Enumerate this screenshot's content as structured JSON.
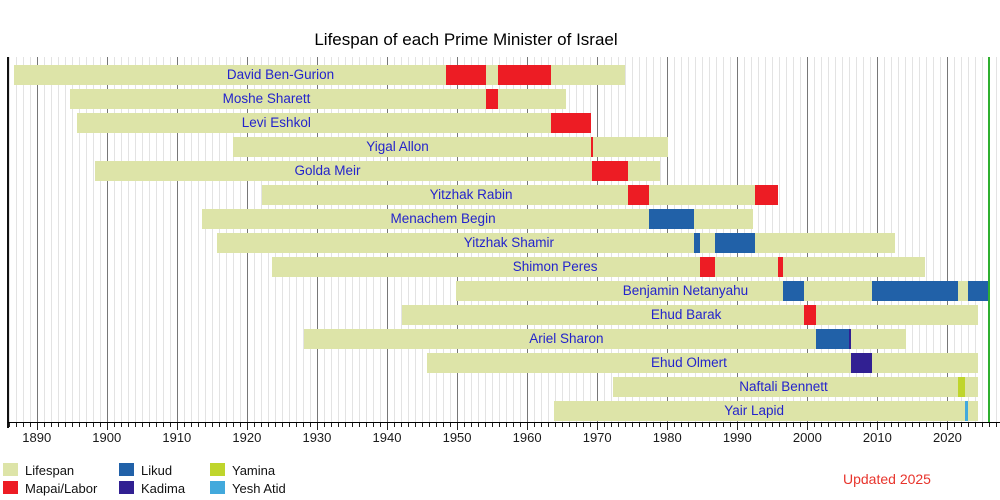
{
  "title": "Lifespan of each Prime Minister of Israel",
  "updated_note": "Updated 2025",
  "colors": {
    "lifespan": "#dde4a8",
    "mapai_labor": "#ed1c24",
    "likud": "#2161a8",
    "kadima": "#312092",
    "yamina": "#bfd52c",
    "yesh_atid": "#42a9dc",
    "label_text": "#2424cc",
    "now_line": "#2faf2f",
    "grid_minor": "#e3e3e3",
    "grid_major": "#777777",
    "axis": "#000000",
    "updated_note_color": "#e8342c"
  },
  "legend": {
    "items": [
      {
        "label": "Lifespan",
        "color_key": "lifespan"
      },
      {
        "label": "Mapai/Labor",
        "color_key": "mapai_labor"
      },
      {
        "label": "Likud",
        "color_key": "likud"
      },
      {
        "label": "Kadima",
        "color_key": "kadima"
      },
      {
        "label": "Yamina",
        "color_key": "yamina"
      },
      {
        "label": "Yesh Atid",
        "color_key": "yesh_atid"
      }
    ]
  },
  "chart_data": {
    "type": "timeline",
    "title": "Lifespan of each Prime Minister of Israel",
    "x_axis": {
      "min_year": 1885.9,
      "max_year": 2027.5,
      "minor_tick_step": 1,
      "major_tick_step": 10,
      "tick_label_years": [
        1890,
        1900,
        1910,
        1920,
        1930,
        1940,
        1950,
        1960,
        1970,
        1980,
        1990,
        2000,
        2010,
        2020
      ]
    },
    "now_marker_year": 2025.9,
    "living_bar_end_year": 2024.4,
    "rows": [
      {
        "name": "David Ben-Gurion",
        "birth": 1886.8,
        "death": 1973.95,
        "label_year": 1924.8,
        "terms": [
          {
            "party": "mapai_labor",
            "start": 1948.37,
            "end": 1954.07
          },
          {
            "party": "mapai_labor",
            "start": 1955.84,
            "end": 1963.48
          }
        ]
      },
      {
        "name": "Moshe Sharett",
        "birth": 1894.8,
        "death": 1965.55,
        "label_year": 1922.8,
        "terms": [
          {
            "party": "mapai_labor",
            "start": 1954.07,
            "end": 1955.84
          }
        ]
      },
      {
        "name": "Levi Eshkol",
        "birth": 1895.8,
        "death": 1969.15,
        "label_year": 1924.2,
        "terms": [
          {
            "party": "mapai_labor",
            "start": 1963.48,
            "end": 1969.15
          }
        ]
      },
      {
        "name": "Yigal Allon",
        "birth": 1918.0,
        "death": 1980.15,
        "label_year": 1941.5,
        "terms": [
          {
            "party": "mapai_labor",
            "start": 1969.15,
            "end": 1969.45
          }
        ]
      },
      {
        "name": "Golda Meir",
        "birth": 1898.3,
        "death": 1978.9,
        "label_year": 1931.5,
        "terms": [
          {
            "party": "mapai_labor",
            "start": 1969.21,
            "end": 1974.42
          }
        ]
      },
      {
        "name": "Yitzhak Rabin",
        "birth": 1922.2,
        "death": 1995.84,
        "label_year": 1952.0,
        "terms": [
          {
            "party": "mapai_labor",
            "start": 1974.42,
            "end": 1977.45
          },
          {
            "party": "mapai_labor",
            "start": 1992.54,
            "end": 1995.84
          }
        ]
      },
      {
        "name": "Menachem Begin",
        "birth": 1913.6,
        "death": 1992.2,
        "label_year": 1948.0,
        "terms": [
          {
            "party": "likud",
            "start": 1977.45,
            "end": 1983.76
          }
        ]
      },
      {
        "name": "Yitzhak Shamir",
        "birth": 1915.8,
        "death": 2012.5,
        "label_year": 1957.4,
        "terms": [
          {
            "party": "likud",
            "start": 1983.76,
            "end": 1984.7
          },
          {
            "party": "likud",
            "start": 1986.79,
            "end": 1992.54
          }
        ]
      },
      {
        "name": "Shimon Peres",
        "birth": 1923.6,
        "death": 2016.75,
        "label_year": 1964.0,
        "terms": [
          {
            "party": "mapai_labor",
            "start": 1984.7,
            "end": 1986.79
          },
          {
            "party": "mapai_labor",
            "start": 1995.84,
            "end": 1996.46
          }
        ]
      },
      {
        "name": "Benjamin Netanyahu",
        "birth": 1949.8,
        "death": null,
        "label_year": 1982.6,
        "terms": [
          {
            "party": "likud",
            "start": 1996.46,
            "end": 1999.52
          },
          {
            "party": "likud",
            "start": 2009.21,
            "end": 2021.45
          },
          {
            "party": "likud",
            "start": 2022.99,
            "end": 2025.9
          }
        ]
      },
      {
        "name": "Ehud Barak",
        "birth": 1942.1,
        "death": null,
        "label_year": 1982.7,
        "terms": [
          {
            "party": "mapai_labor",
            "start": 1999.52,
            "end": 2001.19
          }
        ]
      },
      {
        "name": "Ariel Sharon",
        "birth": 1928.1,
        "death": 2014.04,
        "label_year": 1965.6,
        "terms": [
          {
            "party": "likud",
            "start": 2001.19,
            "end": 2005.88
          },
          {
            "party": "kadima",
            "start": 2005.88,
            "end": 2006.27
          }
        ]
      },
      {
        "name": "Ehud Olmert",
        "birth": 1945.7,
        "death": null,
        "label_year": 1983.1,
        "terms": [
          {
            "party": "kadima",
            "start": 2006.27,
            "end": 2009.21
          }
        ]
      },
      {
        "name": "Naftali Bennett",
        "birth": 1972.2,
        "death": null,
        "label_year": 1996.6,
        "terms": [
          {
            "party": "yamina",
            "start": 2021.45,
            "end": 2022.5
          }
        ]
      },
      {
        "name": "Yair Lapid",
        "birth": 1963.9,
        "death": null,
        "label_year": 1992.4,
        "terms": [
          {
            "party": "yesh_atid",
            "start": 2022.5,
            "end": 2022.99
          }
        ]
      }
    ]
  }
}
